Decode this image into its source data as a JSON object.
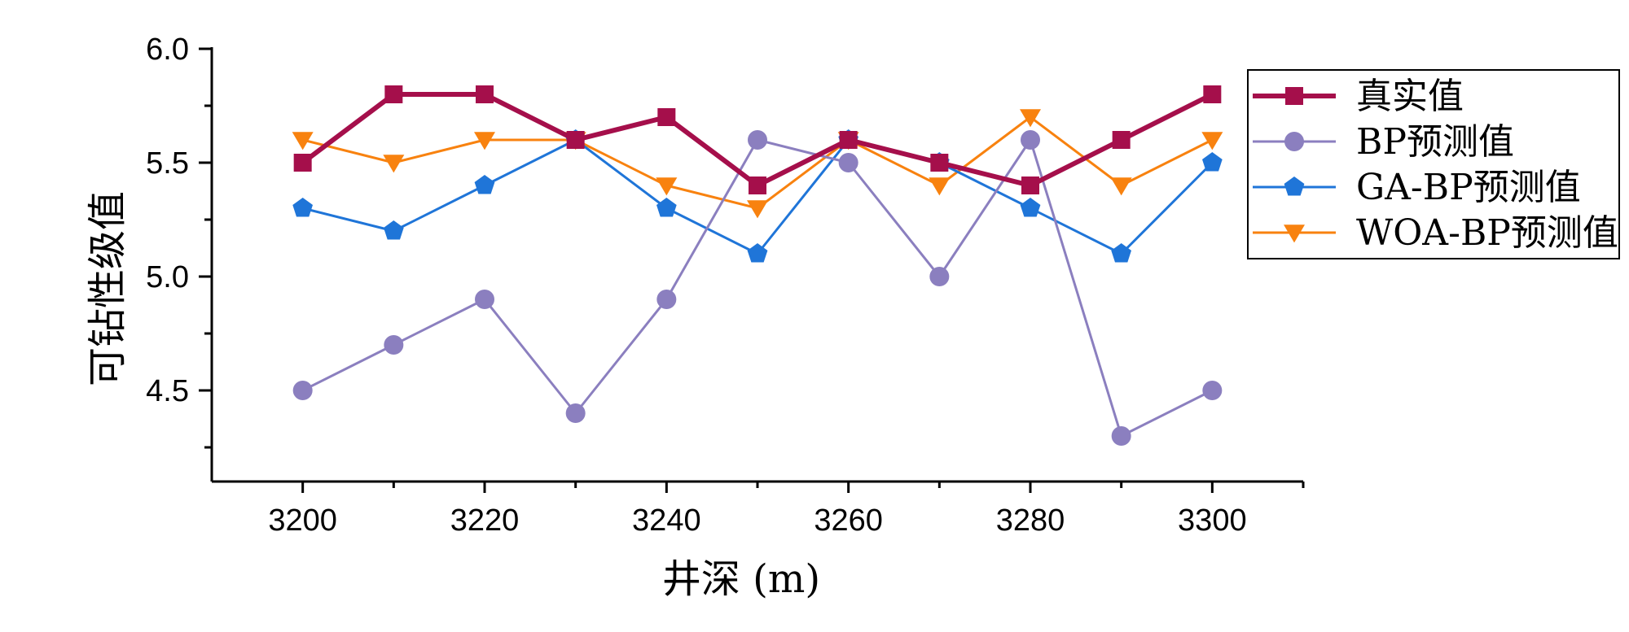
{
  "chart_data": {
    "type": "line",
    "title": "",
    "xlabel": "井深 (m)",
    "ylabel": "可钻性级值",
    "xlim": [
      3190,
      3310
    ],
    "ylim": [
      4.1,
      6.0
    ],
    "xticks": [
      "3200",
      "3220",
      "3240",
      "3260",
      "3280",
      "3300"
    ],
    "yticks": [
      "4.5",
      "5.0",
      "5.5",
      "6.0"
    ],
    "legend_position": "top-right outside",
    "grid": false,
    "x": [
      3200,
      3210,
      3220,
      3230,
      3240,
      3250,
      3260,
      3270,
      3280,
      3290,
      3300
    ],
    "series": [
      {
        "name": "真实值",
        "color": "#A50F4B",
        "marker": "square",
        "bold": true,
        "values": [
          5.5,
          5.8,
          5.8,
          5.6,
          5.7,
          5.4,
          5.6,
          5.5,
          5.4,
          5.6,
          5.8
        ]
      },
      {
        "name": "BP预测值",
        "color": "#8B7FBF",
        "marker": "circle",
        "bold": false,
        "values": [
          4.5,
          4.7,
          4.9,
          4.4,
          4.9,
          5.6,
          5.5,
          5.0,
          5.6,
          4.3,
          4.5
        ]
      },
      {
        "name": "GA-BP预测值",
        "color": "#1F75D8",
        "marker": "pentagon",
        "bold": false,
        "values": [
          5.3,
          5.2,
          5.4,
          5.6,
          5.3,
          5.1,
          5.6,
          5.5,
          5.3,
          5.1,
          5.5
        ]
      },
      {
        "name": "WOA-BP预测值",
        "color": "#F8820F",
        "marker": "triangle-down",
        "bold": false,
        "values": [
          5.6,
          5.5,
          5.6,
          5.6,
          5.4,
          5.3,
          5.6,
          5.4,
          5.7,
          5.4,
          5.6
        ]
      }
    ]
  }
}
